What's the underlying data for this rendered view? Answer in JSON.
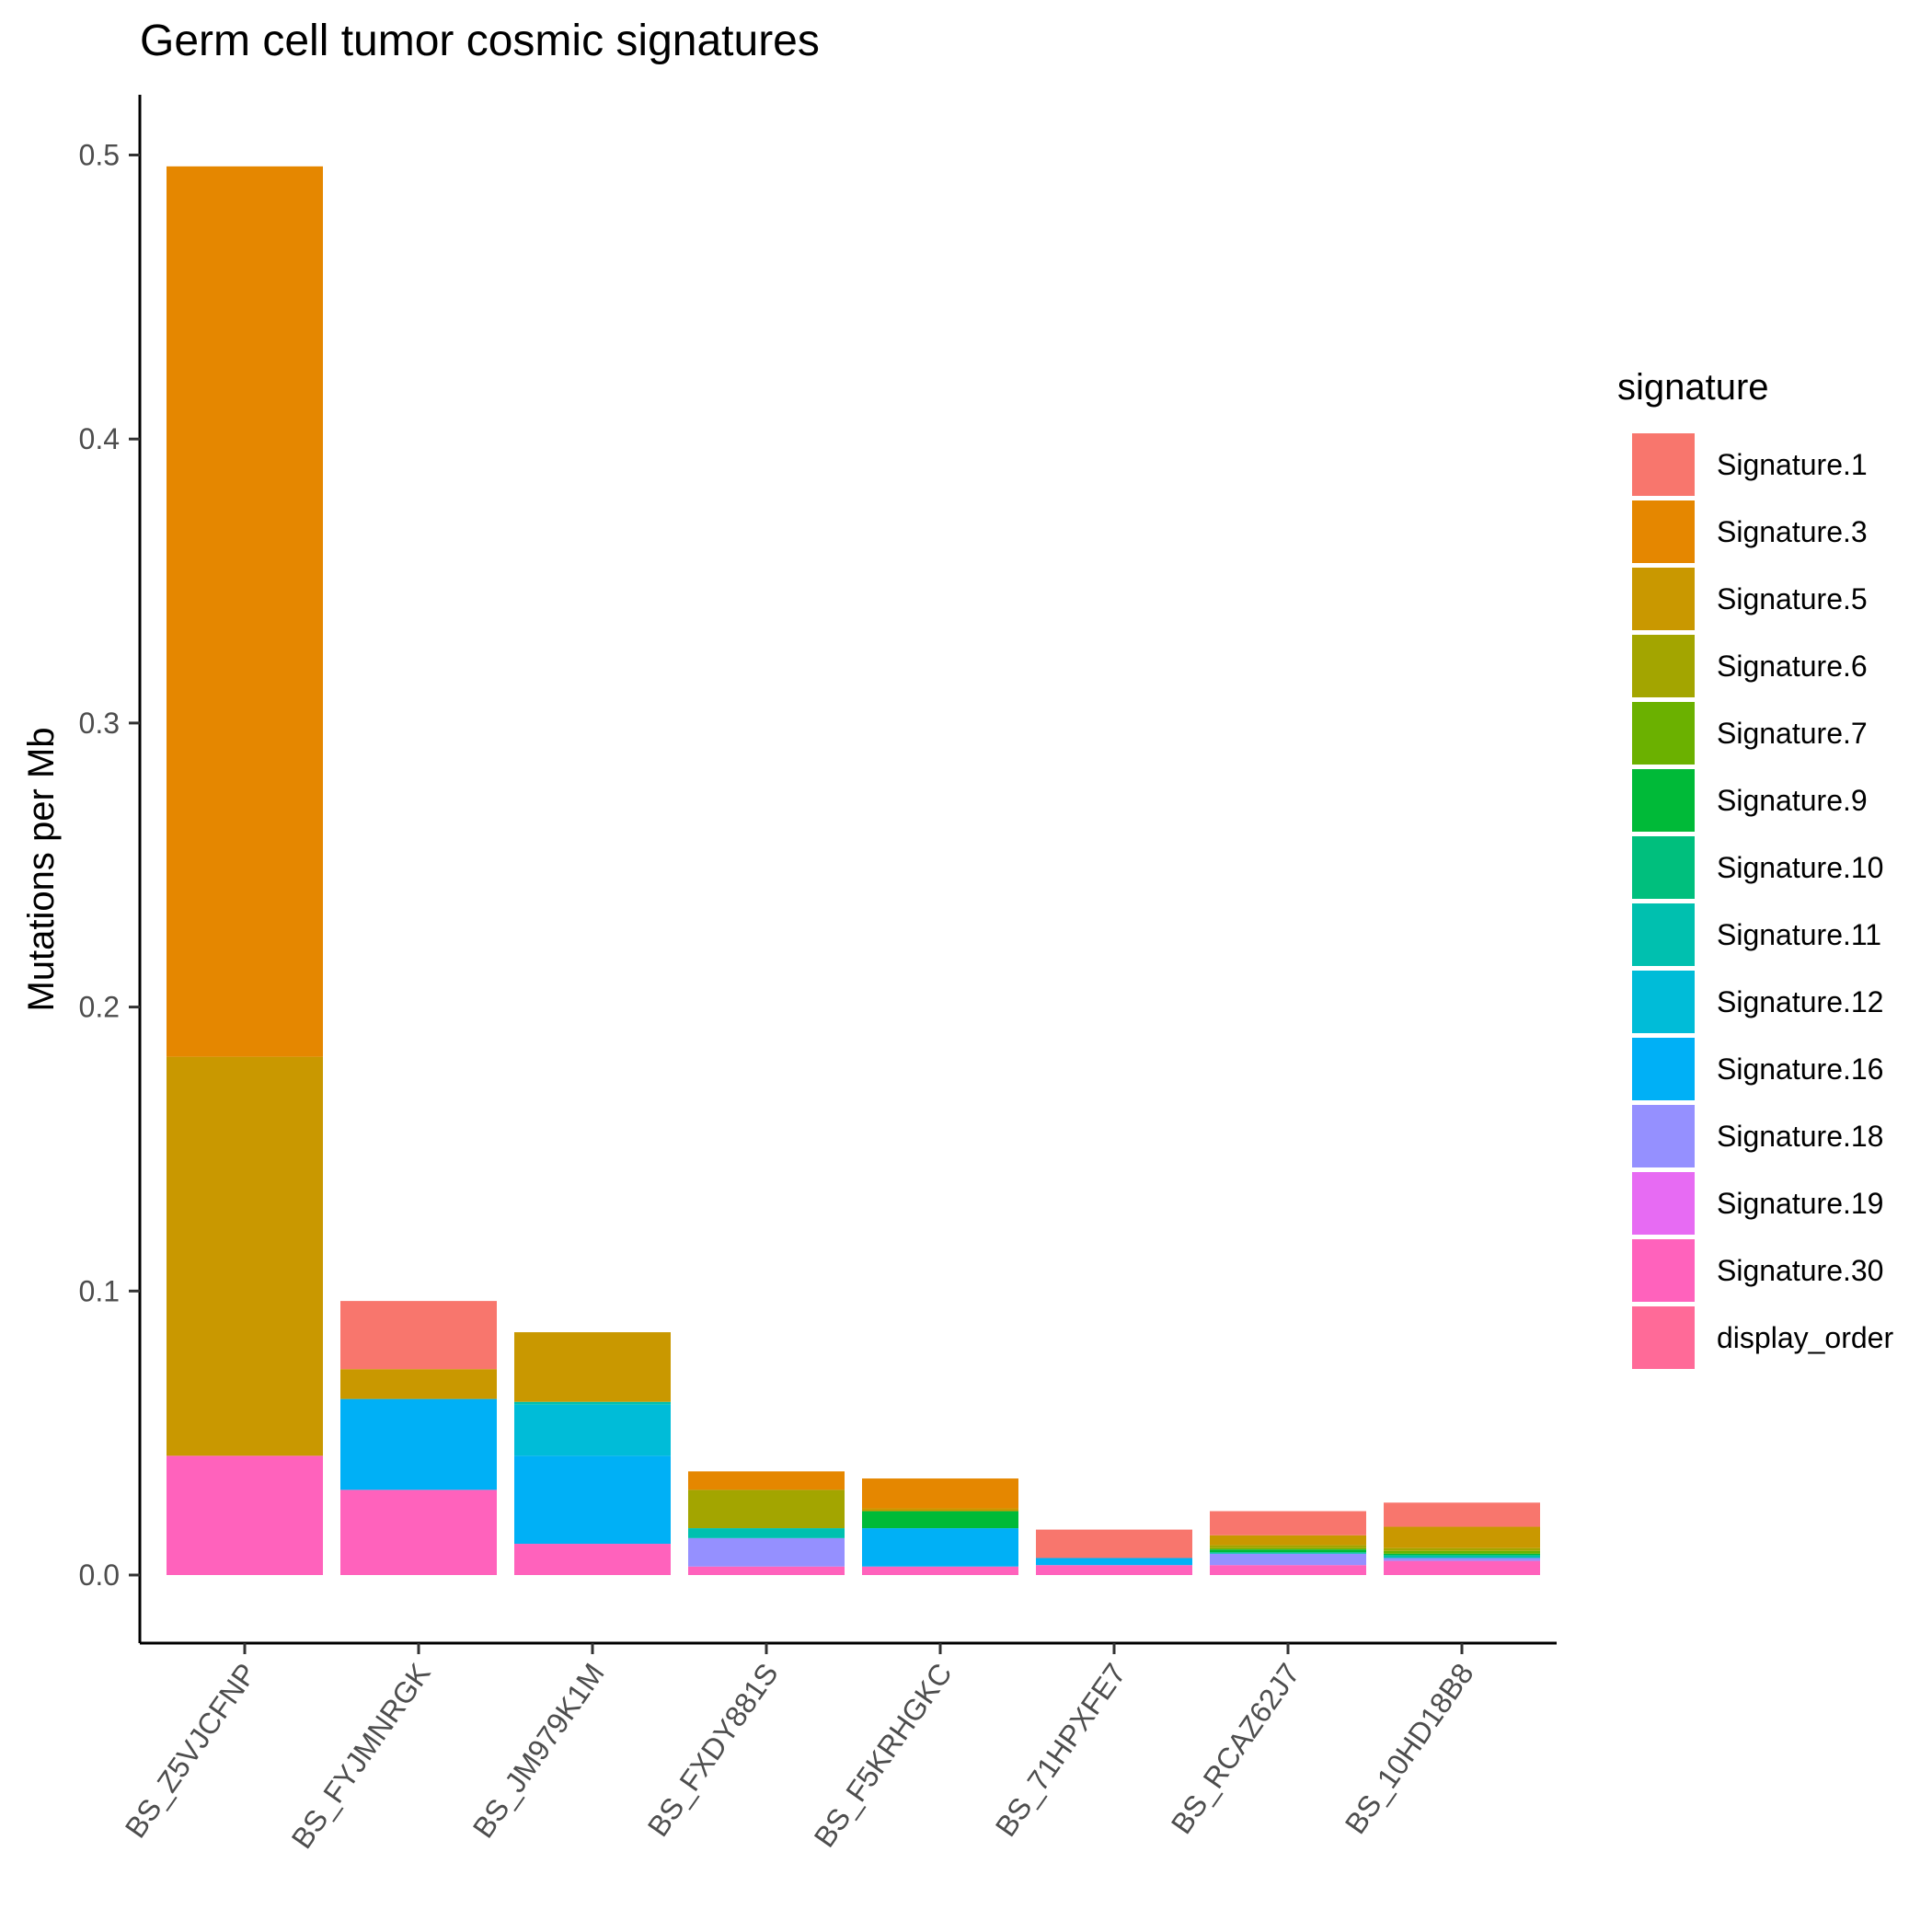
{
  "chart_data": {
    "type": "bar",
    "stacked": true,
    "title": "Germ cell tumor cosmic signatures",
    "xlabel": "",
    "ylabel": "Mutations per Mb",
    "ylim": [
      -0.025,
      0.52
    ],
    "yticks": [
      "0.0",
      "0.1",
      "0.2",
      "0.3",
      "0.4",
      "0.5"
    ],
    "ytick_values": [
      0.0,
      0.1,
      0.2,
      0.3,
      0.4,
      0.5
    ],
    "grid": false,
    "legend": {
      "title": "signature",
      "position": "right"
    },
    "categories": [
      "BS_Z5VJCFNP",
      "BS_FYJMNRGK",
      "BS_JM979K1M",
      "BS_FXDY881S",
      "BS_F5KRHGKC",
      "BS_71HPXFE7",
      "BS_RCAZ62J7",
      "BS_10HD18B8"
    ],
    "series": [
      {
        "name": "Signature.1",
        "color": "#F8766D",
        "values": [
          0,
          0.024,
          0,
          0,
          0,
          0.01,
          0.0085,
          0.0085
        ]
      },
      {
        "name": "Signature.3",
        "color": "#E58700",
        "values": [
          0.3135,
          0,
          0,
          0.0065,
          0.0105,
          0,
          0,
          0
        ]
      },
      {
        "name": "Signature.5",
        "color": "#C99800",
        "values": [
          0.1405,
          0.0105,
          0.0245,
          0,
          0.001,
          0,
          0.0035,
          0.0075
        ]
      },
      {
        "name": "Signature.6",
        "color": "#A3A500",
        "values": [
          0,
          0,
          0,
          0.0135,
          0,
          0,
          0.001,
          0.001
        ]
      },
      {
        "name": "Signature.7",
        "color": "#6BB100",
        "values": [
          0,
          0,
          0,
          0,
          0,
          0,
          0.0005,
          0.001
        ]
      },
      {
        "name": "Signature.9",
        "color": "#00BA38",
        "values": [
          0,
          0,
          0,
          0,
          0.006,
          0,
          0.001,
          0.0005
        ]
      },
      {
        "name": "Signature.10",
        "color": "#00BF7D",
        "values": [
          0,
          0,
          0,
          0,
          0,
          0,
          0,
          0
        ]
      },
      {
        "name": "Signature.11",
        "color": "#00C0AF",
        "values": [
          0,
          0,
          0.001,
          0.0035,
          0,
          0,
          0.0005,
          0.001
        ]
      },
      {
        "name": "Signature.12",
        "color": "#00BCD8",
        "values": [
          0,
          0,
          0.018,
          0,
          0,
          0,
          0,
          0
        ]
      },
      {
        "name": "Signature.16",
        "color": "#00B0F6",
        "values": [
          0,
          0.032,
          0.031,
          0,
          0.0135,
          0.0025,
          0,
          0
        ]
      },
      {
        "name": "Signature.18",
        "color": "#9590FF",
        "values": [
          0,
          0,
          0,
          0.01,
          0,
          0,
          0.004,
          0.001
        ]
      },
      {
        "name": "Signature.19",
        "color": "#E76BF3",
        "values": [
          0,
          0,
          0,
          0,
          0,
          0,
          0,
          0
        ]
      },
      {
        "name": "Signature.30",
        "color": "#FF62BC",
        "values": [
          0.042,
          0.03,
          0.011,
          0.003,
          0.003,
          0.0035,
          0.0035,
          0.005
        ]
      },
      {
        "name": "display_order",
        "color": "#FF6A98",
        "values": [
          0,
          0,
          0,
          0,
          0,
          0,
          0,
          0
        ]
      }
    ]
  }
}
